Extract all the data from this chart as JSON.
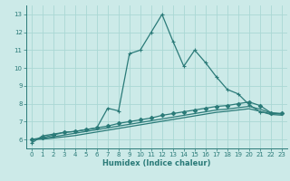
{
  "xlabel": "Humidex (Indice chaleur)",
  "background_color": "#cceae8",
  "grid_color": "#aad8d4",
  "line_color": "#2a7a78",
  "xlim": [
    -0.5,
    23.5
  ],
  "ylim": [
    5.5,
    13.5
  ],
  "x_ticks": [
    0,
    1,
    2,
    3,
    4,
    5,
    6,
    7,
    8,
    9,
    10,
    11,
    12,
    13,
    14,
    15,
    16,
    17,
    18,
    19,
    20,
    21,
    22,
    23
  ],
  "y_ticks": [
    6,
    7,
    8,
    9,
    10,
    11,
    12,
    13
  ],
  "series": [
    {
      "x": [
        0,
        1,
        2,
        3,
        4,
        5,
        6,
        7,
        8,
        9,
        10,
        11,
        12,
        13,
        14,
        15,
        16,
        17,
        18,
        19,
        20,
        21,
        22,
        23
      ],
      "y": [
        5.8,
        6.2,
        6.3,
        6.4,
        6.45,
        6.55,
        6.65,
        7.75,
        7.6,
        10.8,
        11.0,
        12.0,
        13.0,
        11.5,
        10.1,
        11.0,
        10.3,
        9.5,
        8.8,
        8.55,
        7.95,
        7.55,
        7.45,
        7.45
      ],
      "marker": "+",
      "markersize": 3.5,
      "linewidth": 0.9
    },
    {
      "x": [
        0,
        1,
        2,
        3,
        4,
        5,
        6,
        7,
        8,
        9,
        10,
        11,
        12,
        13,
        14,
        15,
        16,
        17,
        18,
        19,
        20,
        21,
        22,
        23
      ],
      "y": [
        6.0,
        6.1,
        6.25,
        6.4,
        6.45,
        6.55,
        6.65,
        6.75,
        6.9,
        7.0,
        7.1,
        7.2,
        7.35,
        7.45,
        7.55,
        7.65,
        7.75,
        7.85,
        7.9,
        8.0,
        8.1,
        7.9,
        7.5,
        7.45
      ],
      "marker": "D",
      "markersize": 2.2,
      "linewidth": 0.9
    },
    {
      "x": [
        0,
        1,
        2,
        3,
        4,
        5,
        6,
        7,
        8,
        9,
        10,
        11,
        12,
        13,
        14,
        15,
        16,
        17,
        18,
        19,
        20,
        21,
        22,
        23
      ],
      "y": [
        6.0,
        6.05,
        6.15,
        6.25,
        6.35,
        6.45,
        6.55,
        6.65,
        6.75,
        6.85,
        6.95,
        7.05,
        7.15,
        7.25,
        7.35,
        7.45,
        7.55,
        7.65,
        7.7,
        7.78,
        7.85,
        7.7,
        7.48,
        7.42
      ],
      "marker": null,
      "markersize": 0,
      "linewidth": 0.9
    },
    {
      "x": [
        0,
        1,
        2,
        3,
        4,
        5,
        6,
        7,
        8,
        9,
        10,
        11,
        12,
        13,
        14,
        15,
        16,
        17,
        18,
        19,
        20,
        21,
        22,
        23
      ],
      "y": [
        6.0,
        6.02,
        6.08,
        6.15,
        6.22,
        6.32,
        6.42,
        6.52,
        6.62,
        6.72,
        6.82,
        6.92,
        7.02,
        7.12,
        7.22,
        7.32,
        7.42,
        7.52,
        7.58,
        7.65,
        7.72,
        7.58,
        7.4,
        7.36
      ],
      "marker": null,
      "markersize": 0,
      "linewidth": 0.9
    }
  ]
}
